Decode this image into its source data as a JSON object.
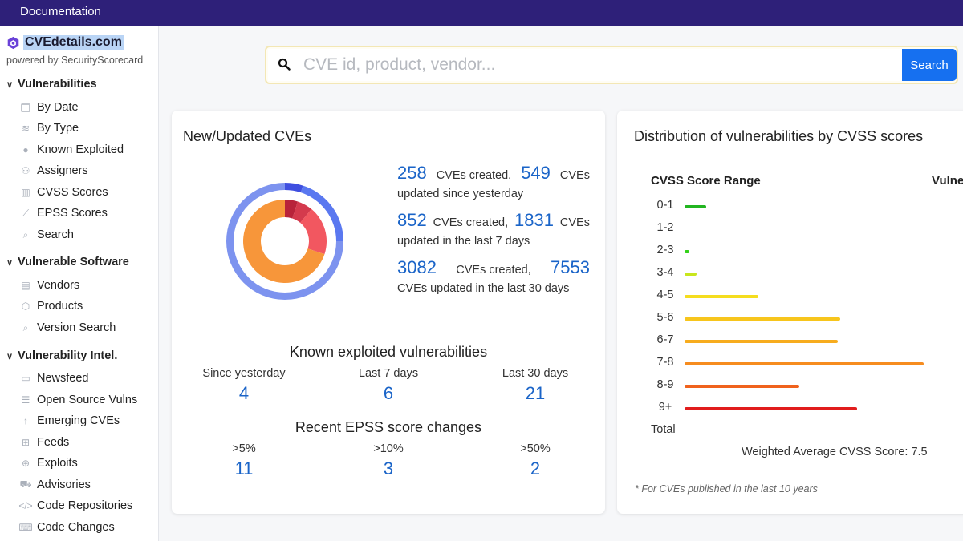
{
  "topbar": {
    "label": "Documentation"
  },
  "brand": {
    "name": "CVEdetails.com",
    "powered": "powered by SecurityScorecard"
  },
  "sidebar": {
    "sections": [
      {
        "label": "Vulnerabilities",
        "items": [
          "By Date",
          "By Type",
          "Known Exploited",
          "Assigners",
          "CVSS Scores",
          "EPSS Scores",
          "Search"
        ]
      },
      {
        "label": "Vulnerable Software",
        "items": [
          "Vendors",
          "Products",
          "Version Search"
        ]
      },
      {
        "label": "Vulnerability Intel.",
        "items": [
          "Newsfeed",
          "Open Source Vulns",
          "Emerging CVEs",
          "Feeds",
          "Exploits",
          "Advisories",
          "Code Repositories",
          "Code Changes"
        ]
      }
    ]
  },
  "search": {
    "placeholder": "CVE id, product, vendor...",
    "button": "Search"
  },
  "new_updated": {
    "title": "New/Updated CVEs",
    "rows": [
      {
        "created": "258",
        "created_label": "CVEs created,",
        "updated": "549",
        "updated_label": "CVEs",
        "rest": "updated since yesterday"
      },
      {
        "created": "852",
        "created_label": "CVEs created,",
        "updated": "1831",
        "updated_label": "CVEs",
        "rest": "updated in the last 7 days"
      },
      {
        "created": "3082",
        "created_label": "CVEs created,",
        "updated": "7553",
        "updated_label": "",
        "rest": "CVEs updated in the last 30 days"
      }
    ]
  },
  "known_exploited": {
    "title": "Known exploited vulnerabilities",
    "cols": [
      {
        "label": "Since yesterday",
        "value": "4"
      },
      {
        "label": "Last 7 days",
        "value": "6"
      },
      {
        "label": "Last 30 days",
        "value": "21"
      }
    ]
  },
  "epss": {
    "title": "Recent EPSS score changes",
    "cols": [
      {
        "label": ">5%",
        "value": "11"
      },
      {
        "label": ">10%",
        "value": "3"
      },
      {
        "label": ">50%",
        "value": "2"
      }
    ]
  },
  "distribution": {
    "title": "Distribution of vulnerabilities by CVSS scores",
    "col_range": "CVSS Score Range",
    "col_vuln": "Vulne",
    "total_label": "Total",
    "weighted": "Weighted Average CVSS Score: 7.5",
    "note": "* For CVEs published in the last 10 years"
  },
  "chart_data": {
    "type": "bar",
    "categories": [
      "0-1",
      "1-2",
      "2-3",
      "3-4",
      "4-5",
      "5-6",
      "6-7",
      "7-8",
      "8-9",
      "9+"
    ],
    "values": [
      0.09,
      0.0,
      0.02,
      0.05,
      0.31,
      0.65,
      0.64,
      1.0,
      0.48,
      0.72
    ],
    "colors": [
      "#22b520",
      "#22b520",
      "#33d11a",
      "#c8e61c",
      "#f5dd1e",
      "#f7c51c",
      "#f7ac1e",
      "#f68c1f",
      "#f0621c",
      "#e11d1d"
    ]
  },
  "donut": {
    "outer": [
      {
        "value": 0.05,
        "color": "#3f4fe0"
      },
      {
        "value": 0.2,
        "color": "#5a78f0"
      },
      {
        "value": 0.75,
        "color": "#7d93ef"
      }
    ],
    "inner": [
      {
        "value": 0.05,
        "color": "#b8233a"
      },
      {
        "value": 0.06,
        "color": "#d43a4d"
      },
      {
        "value": 0.19,
        "color": "#f25760"
      },
      {
        "value": 0.7,
        "color": "#f7963a"
      }
    ]
  }
}
